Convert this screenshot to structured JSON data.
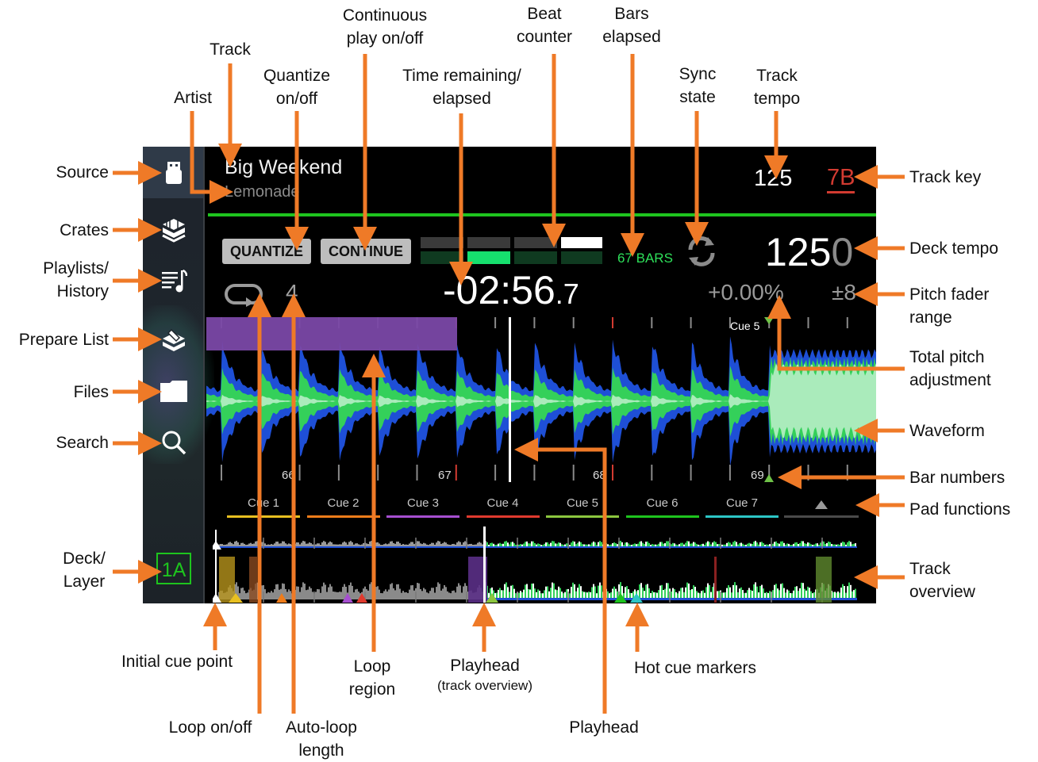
{
  "screen": {
    "track_title": "Big Weekend",
    "artist": "Lemonade",
    "track_tempo": "125",
    "track_key": "7B",
    "quantize_label": "QUANTIZE",
    "continue_label": "CONTINUE",
    "bars_elapsed": "67 BARS",
    "deck_tempo_main": "125",
    "deck_tempo_decimal": "0",
    "time_main": "-02:56",
    "time_decimal": ".7",
    "auto_loop_length": "4",
    "total_pitch": "+0.00%",
    "pitch_range": "±8",
    "cue_marker_label": "Cue 5",
    "bar_numbers": [
      "66",
      "67",
      "68",
      "69"
    ],
    "pads": [
      {
        "label": "Cue 1",
        "color": "#e8c020"
      },
      {
        "label": "Cue 2",
        "color": "#ef7c1a"
      },
      {
        "label": "Cue 3",
        "color": "#a64fd0"
      },
      {
        "label": "Cue 4",
        "color": "#e03a2e"
      },
      {
        "label": "Cue 5",
        "color": "#8cc63f"
      },
      {
        "label": "Cue 6",
        "color": "#1ec41e"
      },
      {
        "label": "Cue 7",
        "color": "#2cc5c5"
      }
    ],
    "deck_layer": "1A"
  },
  "callouts": {
    "source": "Source",
    "crates": "Crates",
    "playlists_1": "Playlists/",
    "playlists_2": "History",
    "prepare": "Prepare List",
    "files": "Files",
    "search": "Search",
    "deck_1": "Deck/",
    "deck_2": "Layer",
    "artist": "Artist",
    "track": "Track",
    "quantize_1": "Quantize",
    "quantize_2": "on/off",
    "continuous_1": "Continuous",
    "continuous_2": "play on/off",
    "time_1": "Time remaining/",
    "time_2": "elapsed",
    "beat_1": "Beat",
    "beat_2": "counter",
    "bars_1": "Bars",
    "bars_2": "elapsed",
    "sync_1": "Sync",
    "sync_2": "state",
    "tracktempo_1": "Track",
    "tracktempo_2": "tempo",
    "trackkey": "Track key",
    "decktempo": "Deck tempo",
    "pitchrange_1": "Pitch fader",
    "pitchrange_2": "range",
    "totalpitch_1": "Total pitch",
    "totalpitch_2": "adjustment",
    "waveform": "Waveform",
    "barnumbers": "Bar numbers",
    "pads": "Pad functions",
    "overview_1": "Track",
    "overview_2": "overview",
    "initialcue": "Initial cue point",
    "loop": "Loop on/off",
    "autoloop_1": "Auto-loop",
    "autoloop_2": "length",
    "loopregion_1": "Loop",
    "loopregion_2": "region",
    "playheadov_1": "Playhead",
    "playheadov_2": "(track overview)",
    "hotcue": "Hot cue markers",
    "playhead": "Playhead"
  }
}
